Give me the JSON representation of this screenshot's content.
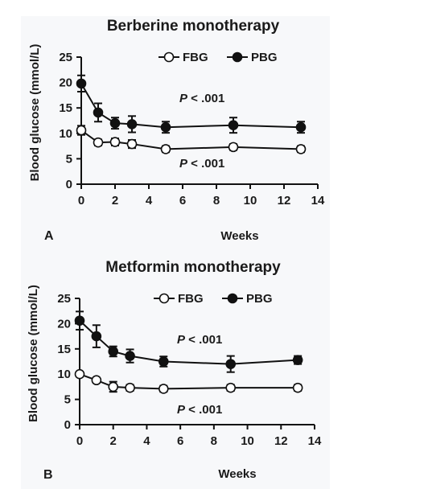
{
  "chart_data": [
    {
      "type": "line",
      "panel_letter": "A",
      "title": "Berberine monotherapy",
      "xlabel": "Weeks",
      "ylabel": "Blood glucose (mmol/L)",
      "xlim": [
        0,
        14
      ],
      "ylim": [
        0,
        25
      ],
      "xticks": [
        0,
        2,
        4,
        6,
        8,
        10,
        12,
        14
      ],
      "yticks": [
        0,
        5,
        10,
        15,
        20,
        25
      ],
      "legend_position": "top-right",
      "series": [
        {
          "name": "FBG",
          "marker": "open-circle",
          "x": [
            0,
            1,
            2,
            3,
            5,
            9,
            13
          ],
          "y": [
            10.6,
            8.2,
            8.3,
            7.9,
            6.9,
            7.3,
            6.9
          ],
          "error": [
            0.9,
            0.6,
            0.7,
            0.8,
            0.6,
            0.6,
            0.6
          ]
        },
        {
          "name": "PBG",
          "marker": "filled-circle",
          "x": [
            0,
            1,
            2,
            3,
            5,
            9,
            13
          ],
          "y": [
            19.8,
            14.1,
            12.0,
            11.8,
            11.2,
            11.6,
            11.2
          ],
          "error": [
            1.6,
            1.8,
            1.1,
            1.6,
            1.1,
            1.5,
            1.1
          ]
        }
      ],
      "annotations": [
        {
          "p": "P",
          "text": " < .001",
          "near_series": "PBG"
        },
        {
          "p": "P",
          "text": " < .001",
          "near_series": "FBG"
        }
      ]
    },
    {
      "type": "line",
      "panel_letter": "B",
      "title": "Metformin monotherapy",
      "xlabel": "Weeks",
      "ylabel": "Blood glucose (mmol/L)",
      "xlim": [
        0,
        14
      ],
      "ylim": [
        0,
        25
      ],
      "xticks": [
        0,
        2,
        4,
        6,
        8,
        10,
        12,
        14
      ],
      "yticks": [
        0,
        5,
        10,
        15,
        20,
        25
      ],
      "legend_position": "top-right",
      "series": [
        {
          "name": "FBG",
          "marker": "open-circle",
          "x": [
            0,
            1,
            2,
            3,
            5,
            9,
            13
          ],
          "y": [
            10.0,
            8.8,
            7.5,
            7.3,
            7.1,
            7.3,
            7.3
          ],
          "error": [
            0.5,
            0.5,
            1.0,
            0.6,
            0.6,
            0.6,
            0.6
          ]
        },
        {
          "name": "PBG",
          "marker": "filled-circle",
          "x": [
            0,
            1,
            2,
            3,
            5,
            9,
            13
          ],
          "y": [
            20.6,
            17.5,
            14.5,
            13.6,
            12.5,
            12.0,
            12.8
          ],
          "error": [
            1.8,
            2.2,
            1.0,
            1.3,
            1.0,
            1.6,
            0.8
          ]
        }
      ],
      "annotations": [
        {
          "p": "P",
          "text": " < .001",
          "near_series": "PBG"
        },
        {
          "p": "P",
          "text": " < .001",
          "near_series": "FBG"
        }
      ]
    }
  ]
}
